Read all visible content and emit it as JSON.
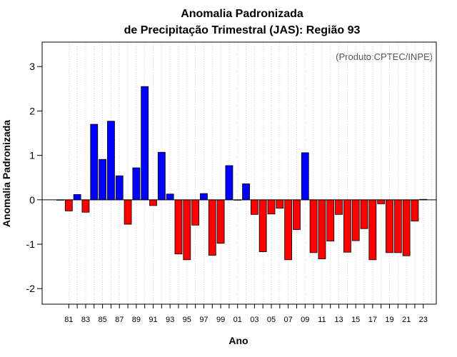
{
  "chart_data": {
    "type": "bar",
    "title_line1": "Anomalia Padronizada",
    "title_line2": "de Precipitação Trimestral (JAS): Região 93",
    "xlabel": "Ano",
    "ylabel": "Anomalia Padronizada",
    "annotation": "(Produto:CPTEC/INPE)",
    "ylim": [
      -2.35,
      3.55
    ],
    "yticks": [
      -2,
      -1,
      0,
      1,
      2,
      3
    ],
    "grid": "vertical dotted",
    "categories": [
      "80",
      "81",
      "82",
      "83",
      "84",
      "85",
      "86",
      "87",
      "88",
      "89",
      "90",
      "91",
      "92",
      "93",
      "94",
      "95",
      "96",
      "97",
      "98",
      "99",
      "00",
      "01",
      "02",
      "03",
      "04",
      "05",
      "06",
      "07",
      "08",
      "09",
      "10",
      "11",
      "12",
      "13",
      "14",
      "15",
      "16",
      "17",
      "18",
      "19",
      "20",
      "21",
      "22",
      "23"
    ],
    "xtick_labels": [
      "81",
      "83",
      "85",
      "87",
      "89",
      "91",
      "93",
      "95",
      "97",
      "99",
      "01",
      "03",
      "05",
      "07",
      "09",
      "11",
      "13",
      "15",
      "17",
      "19",
      "21",
      "23"
    ],
    "values": [
      0.0,
      -0.25,
      0.12,
      -0.28,
      1.7,
      0.91,
      1.77,
      0.54,
      -0.55,
      0.72,
      2.55,
      -0.13,
      1.07,
      0.13,
      -1.22,
      -1.35,
      -0.57,
      0.14,
      -1.25,
      -0.98,
      0.77,
      0.0,
      0.36,
      -0.33,
      -1.17,
      -0.32,
      -0.19,
      -1.35,
      -0.67,
      1.06,
      -1.19,
      -1.33,
      -0.93,
      -0.33,
      -1.18,
      -0.92,
      -0.65,
      -1.35,
      -0.09,
      -1.19,
      -1.19,
      -1.26,
      -0.48,
      0.01
    ],
    "colors": {
      "positive": "#0000ff",
      "negative": "#ff0000",
      "bar_edge": "#000000",
      "grid": "#c8c8c8"
    }
  }
}
